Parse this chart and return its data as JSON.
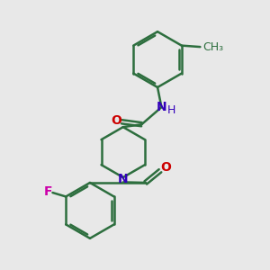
{
  "background_color": "#e8e8e8",
  "bond_color": "#2d6e3e",
  "bond_width": 1.8,
  "N_color": "#3300bb",
  "O_color": "#cc0000",
  "F_color": "#cc00aa",
  "H_color": "#3300bb",
  "font_size": 10,
  "figsize": [
    3.0,
    3.0
  ],
  "dpi": 100,
  "xlim": [
    0,
    10
  ],
  "ylim": [
    0,
    10
  ]
}
